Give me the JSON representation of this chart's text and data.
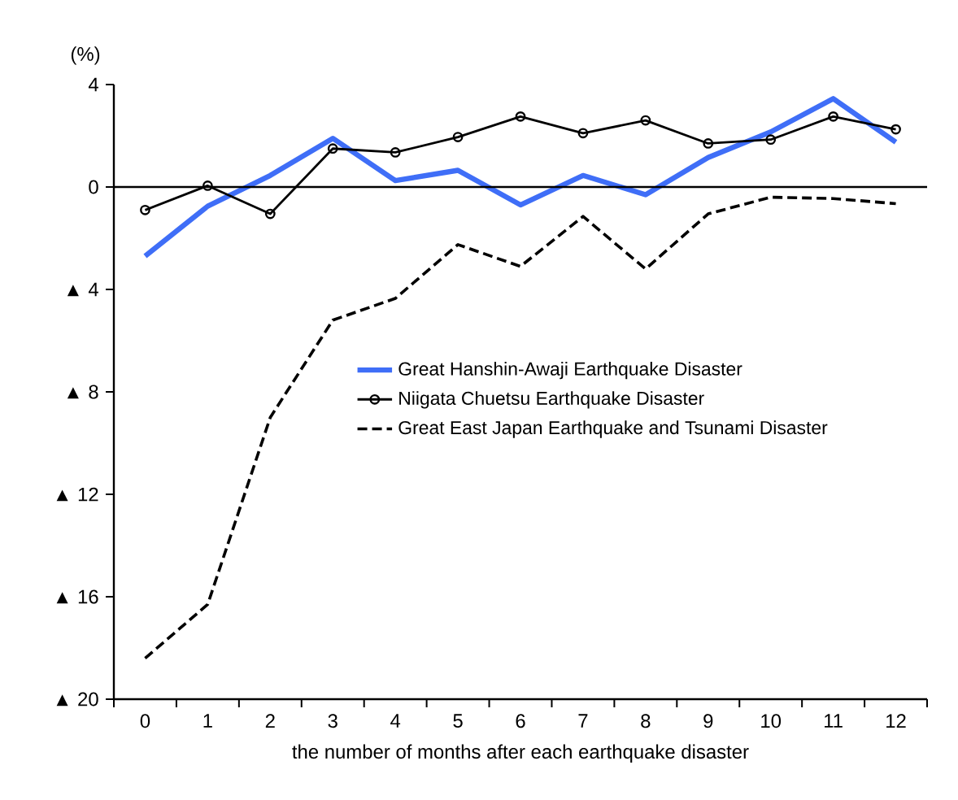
{
  "chart_data": {
    "type": "line",
    "ylabel": "(%)",
    "xlabel": "the number of months after each earthquake disaster",
    "categories": [
      "0",
      "1",
      "2",
      "3",
      "4",
      "5",
      "6",
      "7",
      "8",
      "9",
      "10",
      "11",
      "12"
    ],
    "ylim": [
      -20,
      4
    ],
    "yticks": [
      4,
      0,
      {
        "value": -4,
        "label": "▲ 4"
      },
      {
        "value": -8,
        "label": "▲ 8"
      },
      {
        "value": -12,
        "label": "▲ 12"
      },
      {
        "value": -16,
        "label": "▲ 16"
      },
      {
        "value": -20,
        "label": "▲ 20"
      }
    ],
    "ref_lines": [
      {
        "axis": "y",
        "value": 0,
        "color": "#000000"
      }
    ],
    "legend": "right",
    "series": [
      {
        "name": "Great Hanshin-Awaji Earthquake Disaster",
        "color": "#3f6ef7",
        "marker": "none",
        "line_style": "solid",
        "values": [
          -2.7,
          -0.75,
          0.45,
          1.9,
          0.25,
          0.65,
          -0.7,
          0.45,
          -0.3,
          1.15,
          2.15,
          3.45,
          1.75
        ]
      },
      {
        "name": "Niigata Chuetsu Earthquake Disaster",
        "color": "#000000",
        "marker": "circle",
        "line_style": "solid",
        "values": [
          -0.9,
          0.05,
          -1.05,
          1.5,
          1.35,
          1.95,
          2.75,
          2.1,
          2.6,
          1.7,
          1.85,
          2.75,
          2.25
        ]
      },
      {
        "name": "Great East Japan Earthquake and Tsunami Disaster",
        "color": "#000000",
        "marker": "none",
        "line_style": "dashed",
        "values": [
          -18.4,
          -16.3,
          -9.0,
          -5.2,
          -4.35,
          -2.25,
          -3.1,
          -1.15,
          -3.2,
          -1.05,
          -0.4,
          -0.45,
          -0.65
        ]
      }
    ]
  }
}
